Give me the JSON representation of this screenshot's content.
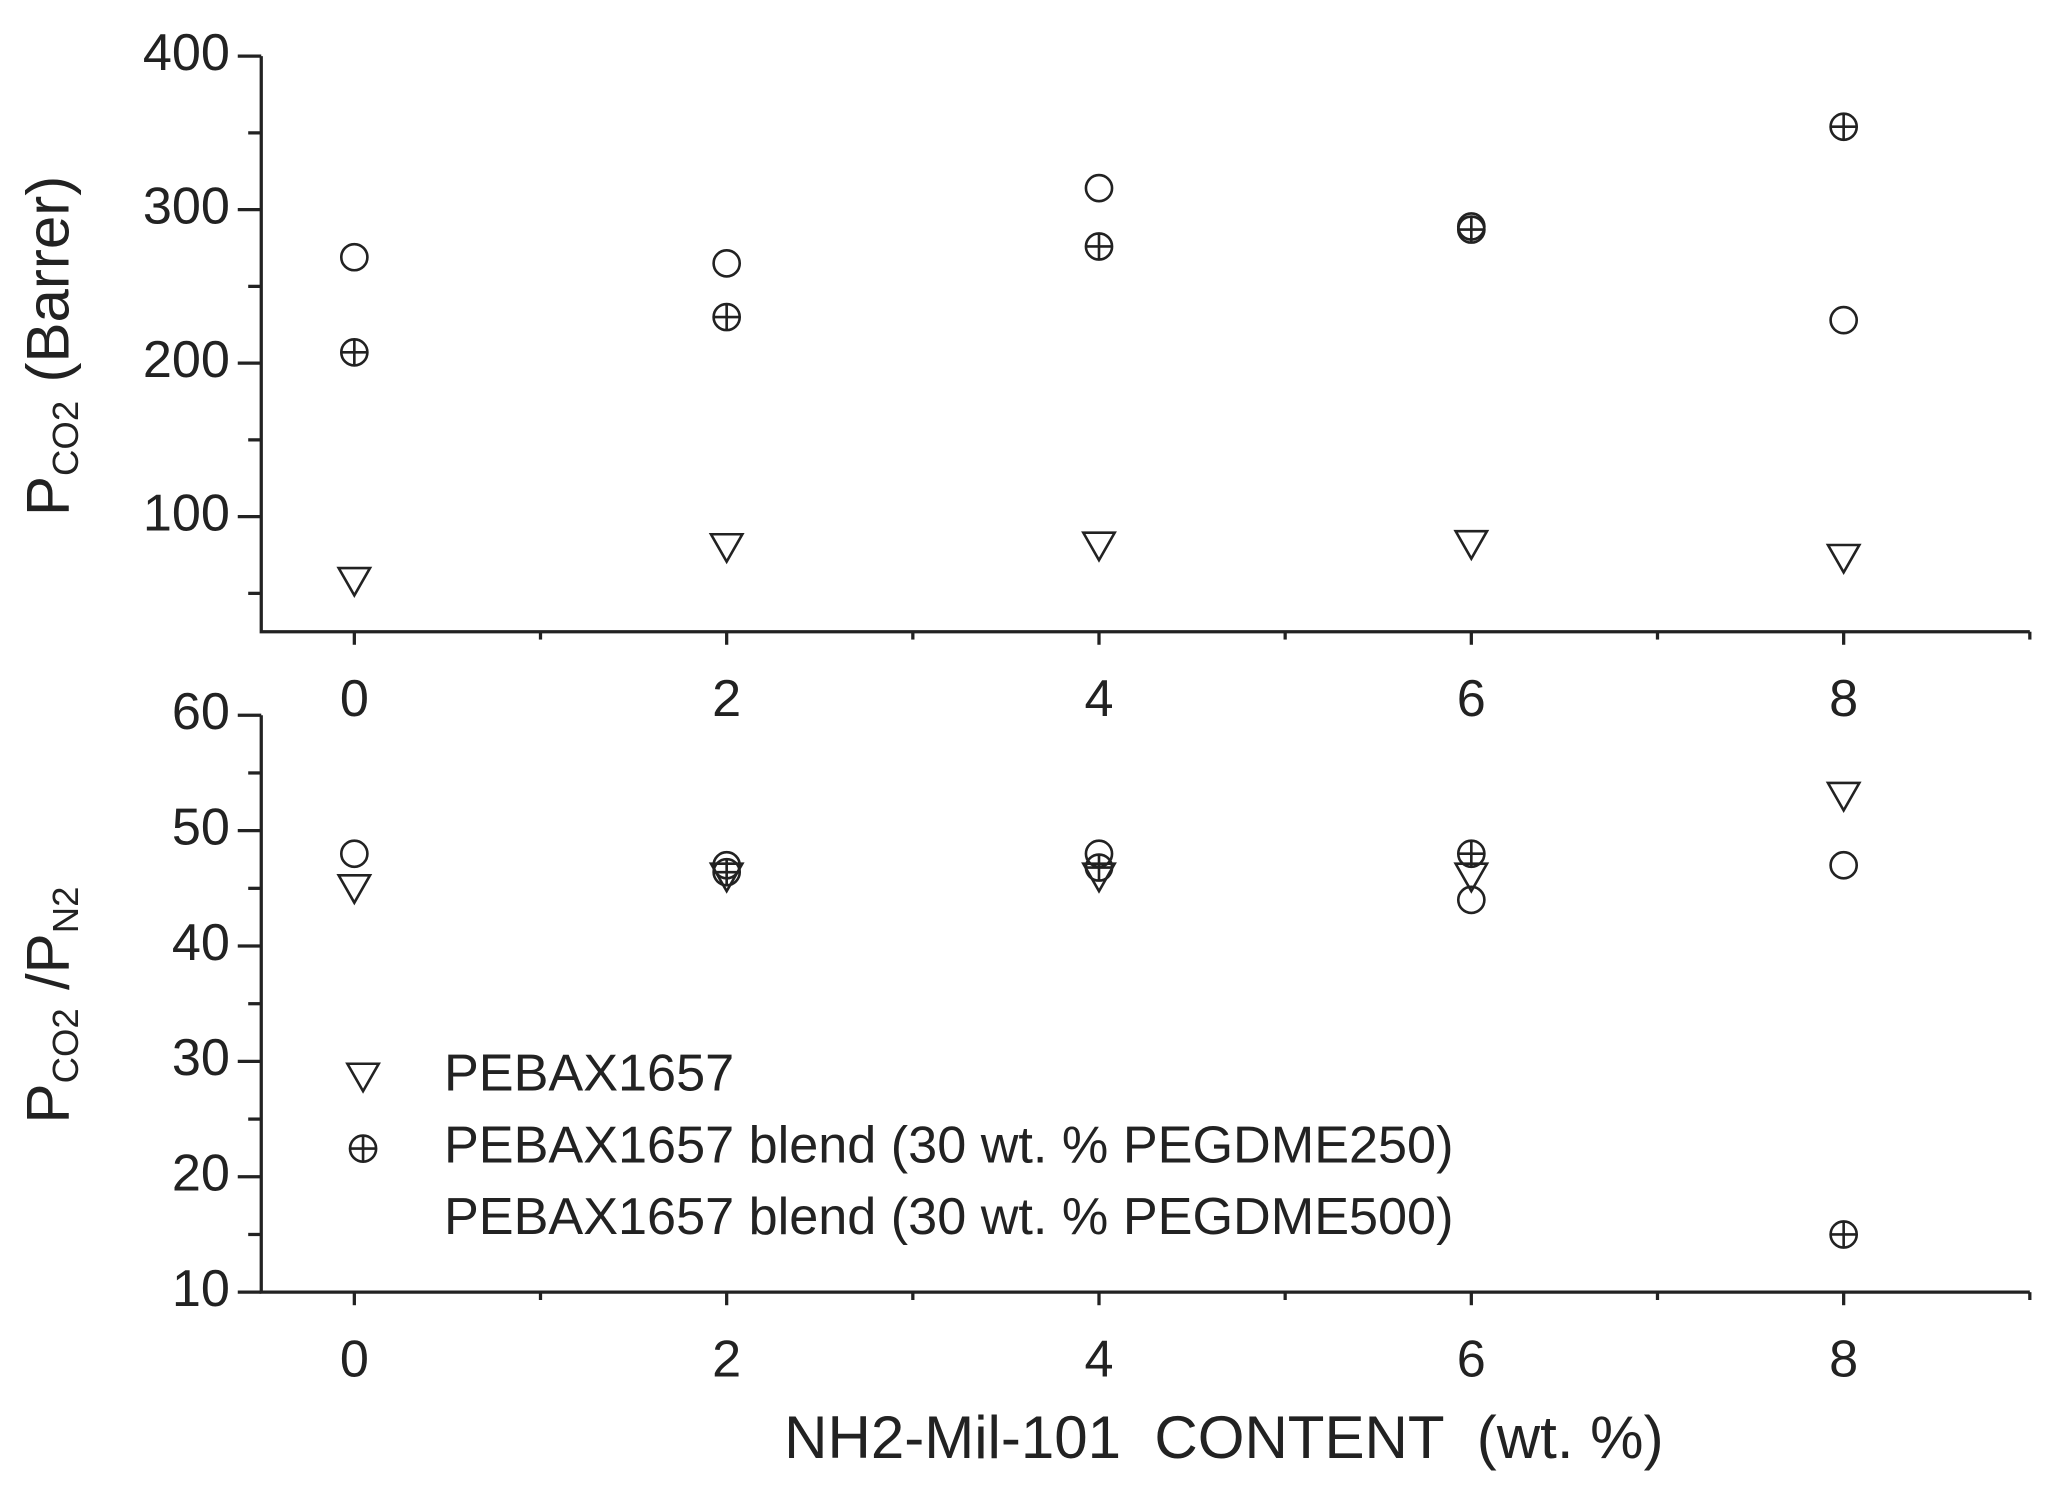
{
  "chart_data": [
    {
      "type": "scatter",
      "y_label": [
        {
          "text": "P"
        },
        {
          "text": "CO2",
          "sub": true
        },
        {
          "text": "(Barrer)"
        }
      ],
      "x": [
        0,
        2,
        4,
        6,
        8
      ],
      "xlim": [
        -0.5,
        9
      ],
      "xticks": [
        0,
        2,
        4,
        6,
        8
      ],
      "x_minor_ticks": [
        1,
        3,
        5,
        7,
        9
      ],
      "ylim": [
        25,
        400
      ],
      "yticks": [
        100,
        200,
        300,
        400
      ],
      "y_minor_ticks": [
        50,
        150,
        250,
        350
      ],
      "series": [
        {
          "name": "PEBAX1657",
          "marker": "triangle-down",
          "color": "#222222",
          "values": [
            58,
            80,
            81,
            82,
            73
          ]
        },
        {
          "name": "PEBAX1657 blend (30 wt. % PEGDME250)",
          "marker": "circle-plus",
          "color": "#222222",
          "values": [
            207,
            230,
            276,
            287,
            354
          ]
        },
        {
          "name": "PEBAX1657 blend (30 wt. % PEGDME500)",
          "marker": "circle",
          "color": "#222222",
          "values": [
            269,
            265,
            314,
            289,
            228
          ]
        }
      ]
    },
    {
      "type": "scatter",
      "y_label": [
        {
          "text": "P"
        },
        {
          "text": "CO2",
          "sub": true
        },
        {
          "text": "/"
        },
        {
          "text": "P"
        },
        {
          "text": "N2",
          "sub": true
        }
      ],
      "x_label": "NH2-Mil-101  CONTENT  (wt. %)",
      "x": [
        0,
        2,
        4,
        6,
        8
      ],
      "xlim": [
        -0.5,
        9
      ],
      "xticks": [
        0,
        2,
        4,
        6,
        8
      ],
      "x_minor_ticks": [
        1,
        3,
        5,
        7,
        9
      ],
      "ylim": [
        10,
        60
      ],
      "yticks": [
        10,
        20,
        30,
        40,
        50,
        60
      ],
      "y_minor_ticks": [
        15,
        25,
        35,
        45,
        55
      ],
      "legend": "lower left",
      "series": [
        {
          "name": "PEBAX1657",
          "marker": "triangle-down",
          "color": "#222222",
          "values": [
            45,
            46,
            46,
            46,
            53
          ]
        },
        {
          "name": "PEBAX1657 blend (30 wt. % PEGDME250)",
          "marker": "circle-plus",
          "color": "#222222",
          "values": [
            null,
            46.4,
            46.8,
            48,
            15
          ]
        },
        {
          "name": "PEBAX1657 blend (30 wt. % PEGDME500)",
          "marker": "circle",
          "color": "#222222",
          "values": [
            48,
            47,
            48,
            44,
            47
          ]
        }
      ]
    }
  ]
}
